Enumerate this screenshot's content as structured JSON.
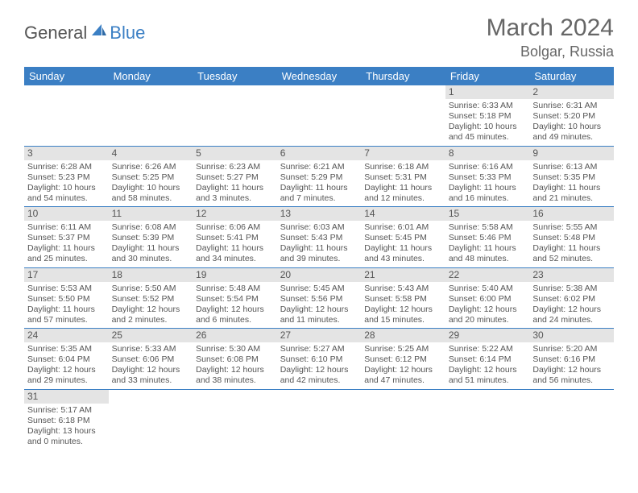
{
  "logo": {
    "general": "General",
    "blue": "Blue"
  },
  "title": "March 2024",
  "location": "Bolgar, Russia",
  "colors": {
    "header_bg": "#3b7fc4",
    "header_text": "#ffffff",
    "daynum_bg": "#e4e4e4",
    "text": "#555555",
    "row_border": "#3b7fc4"
  },
  "weekdays": [
    "Sunday",
    "Monday",
    "Tuesday",
    "Wednesday",
    "Thursday",
    "Friday",
    "Saturday"
  ],
  "weeks": [
    [
      null,
      null,
      null,
      null,
      null,
      {
        "n": "1",
        "sunrise": "Sunrise: 6:33 AM",
        "sunset": "Sunset: 5:18 PM",
        "daylight": "Daylight: 10 hours and 45 minutes."
      },
      {
        "n": "2",
        "sunrise": "Sunrise: 6:31 AM",
        "sunset": "Sunset: 5:20 PM",
        "daylight": "Daylight: 10 hours and 49 minutes."
      }
    ],
    [
      {
        "n": "3",
        "sunrise": "Sunrise: 6:28 AM",
        "sunset": "Sunset: 5:23 PM",
        "daylight": "Daylight: 10 hours and 54 minutes."
      },
      {
        "n": "4",
        "sunrise": "Sunrise: 6:26 AM",
        "sunset": "Sunset: 5:25 PM",
        "daylight": "Daylight: 10 hours and 58 minutes."
      },
      {
        "n": "5",
        "sunrise": "Sunrise: 6:23 AM",
        "sunset": "Sunset: 5:27 PM",
        "daylight": "Daylight: 11 hours and 3 minutes."
      },
      {
        "n": "6",
        "sunrise": "Sunrise: 6:21 AM",
        "sunset": "Sunset: 5:29 PM",
        "daylight": "Daylight: 11 hours and 7 minutes."
      },
      {
        "n": "7",
        "sunrise": "Sunrise: 6:18 AM",
        "sunset": "Sunset: 5:31 PM",
        "daylight": "Daylight: 11 hours and 12 minutes."
      },
      {
        "n": "8",
        "sunrise": "Sunrise: 6:16 AM",
        "sunset": "Sunset: 5:33 PM",
        "daylight": "Daylight: 11 hours and 16 minutes."
      },
      {
        "n": "9",
        "sunrise": "Sunrise: 6:13 AM",
        "sunset": "Sunset: 5:35 PM",
        "daylight": "Daylight: 11 hours and 21 minutes."
      }
    ],
    [
      {
        "n": "10",
        "sunrise": "Sunrise: 6:11 AM",
        "sunset": "Sunset: 5:37 PM",
        "daylight": "Daylight: 11 hours and 25 minutes."
      },
      {
        "n": "11",
        "sunrise": "Sunrise: 6:08 AM",
        "sunset": "Sunset: 5:39 PM",
        "daylight": "Daylight: 11 hours and 30 minutes."
      },
      {
        "n": "12",
        "sunrise": "Sunrise: 6:06 AM",
        "sunset": "Sunset: 5:41 PM",
        "daylight": "Daylight: 11 hours and 34 minutes."
      },
      {
        "n": "13",
        "sunrise": "Sunrise: 6:03 AM",
        "sunset": "Sunset: 5:43 PM",
        "daylight": "Daylight: 11 hours and 39 minutes."
      },
      {
        "n": "14",
        "sunrise": "Sunrise: 6:01 AM",
        "sunset": "Sunset: 5:45 PM",
        "daylight": "Daylight: 11 hours and 43 minutes."
      },
      {
        "n": "15",
        "sunrise": "Sunrise: 5:58 AM",
        "sunset": "Sunset: 5:46 PM",
        "daylight": "Daylight: 11 hours and 48 minutes."
      },
      {
        "n": "16",
        "sunrise": "Sunrise: 5:55 AM",
        "sunset": "Sunset: 5:48 PM",
        "daylight": "Daylight: 11 hours and 52 minutes."
      }
    ],
    [
      {
        "n": "17",
        "sunrise": "Sunrise: 5:53 AM",
        "sunset": "Sunset: 5:50 PM",
        "daylight": "Daylight: 11 hours and 57 minutes."
      },
      {
        "n": "18",
        "sunrise": "Sunrise: 5:50 AM",
        "sunset": "Sunset: 5:52 PM",
        "daylight": "Daylight: 12 hours and 2 minutes."
      },
      {
        "n": "19",
        "sunrise": "Sunrise: 5:48 AM",
        "sunset": "Sunset: 5:54 PM",
        "daylight": "Daylight: 12 hours and 6 minutes."
      },
      {
        "n": "20",
        "sunrise": "Sunrise: 5:45 AM",
        "sunset": "Sunset: 5:56 PM",
        "daylight": "Daylight: 12 hours and 11 minutes."
      },
      {
        "n": "21",
        "sunrise": "Sunrise: 5:43 AM",
        "sunset": "Sunset: 5:58 PM",
        "daylight": "Daylight: 12 hours and 15 minutes."
      },
      {
        "n": "22",
        "sunrise": "Sunrise: 5:40 AM",
        "sunset": "Sunset: 6:00 PM",
        "daylight": "Daylight: 12 hours and 20 minutes."
      },
      {
        "n": "23",
        "sunrise": "Sunrise: 5:38 AM",
        "sunset": "Sunset: 6:02 PM",
        "daylight": "Daylight: 12 hours and 24 minutes."
      }
    ],
    [
      {
        "n": "24",
        "sunrise": "Sunrise: 5:35 AM",
        "sunset": "Sunset: 6:04 PM",
        "daylight": "Daylight: 12 hours and 29 minutes."
      },
      {
        "n": "25",
        "sunrise": "Sunrise: 5:33 AM",
        "sunset": "Sunset: 6:06 PM",
        "daylight": "Daylight: 12 hours and 33 minutes."
      },
      {
        "n": "26",
        "sunrise": "Sunrise: 5:30 AM",
        "sunset": "Sunset: 6:08 PM",
        "daylight": "Daylight: 12 hours and 38 minutes."
      },
      {
        "n": "27",
        "sunrise": "Sunrise: 5:27 AM",
        "sunset": "Sunset: 6:10 PM",
        "daylight": "Daylight: 12 hours and 42 minutes."
      },
      {
        "n": "28",
        "sunrise": "Sunrise: 5:25 AM",
        "sunset": "Sunset: 6:12 PM",
        "daylight": "Daylight: 12 hours and 47 minutes."
      },
      {
        "n": "29",
        "sunrise": "Sunrise: 5:22 AM",
        "sunset": "Sunset: 6:14 PM",
        "daylight": "Daylight: 12 hours and 51 minutes."
      },
      {
        "n": "30",
        "sunrise": "Sunrise: 5:20 AM",
        "sunset": "Sunset: 6:16 PM",
        "daylight": "Daylight: 12 hours and 56 minutes."
      }
    ],
    [
      {
        "n": "31",
        "sunrise": "Sunrise: 5:17 AM",
        "sunset": "Sunset: 6:18 PM",
        "daylight": "Daylight: 13 hours and 0 minutes."
      },
      null,
      null,
      null,
      null,
      null,
      null
    ]
  ]
}
